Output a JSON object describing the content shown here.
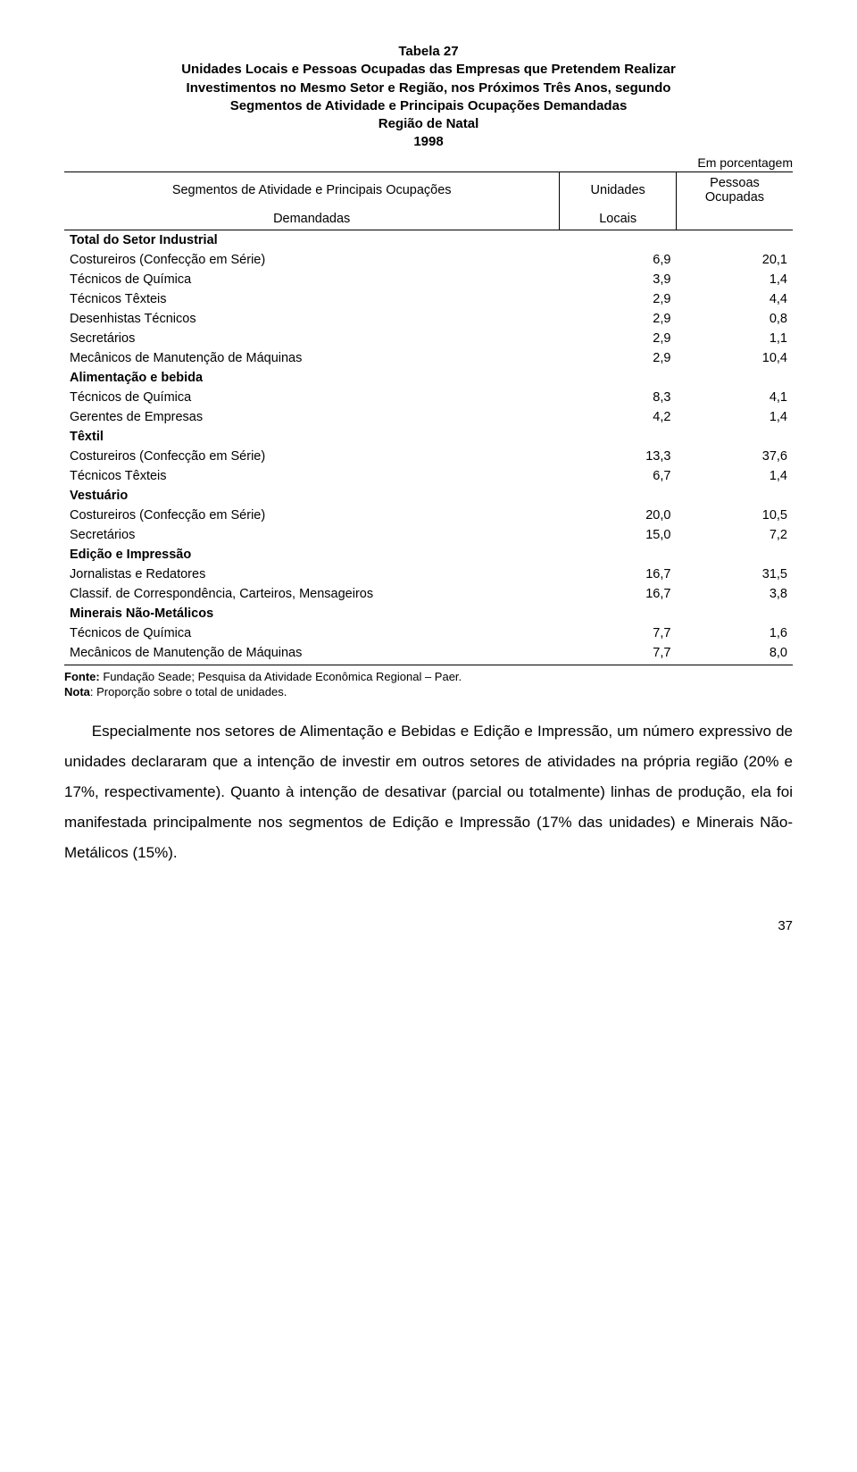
{
  "title": {
    "line1": "Tabela 27",
    "line2": "Unidades Locais e Pessoas Ocupadas das Empresas que Pretendem Realizar",
    "line3": "Investimentos no Mesmo Setor e Região, nos Próximos Três Anos, segundo",
    "line4": "Segmentos de Atividade e Principais Ocupações Demandadas",
    "line5": "Região de Natal",
    "line6": "1998"
  },
  "units_label": "Em porcentagem",
  "header": {
    "left_top": "Segmentos de Atividade e Principais Ocupações",
    "left_bottom": "Demandadas",
    "mid_top": "Unidades",
    "mid_bottom": "Locais",
    "right": "Pessoas Ocupadas"
  },
  "rows": [
    {
      "label": "Total do Setor Industrial",
      "v1": "",
      "v2": "",
      "bold": true
    },
    {
      "label": "Costureiros (Confecção em Série)",
      "v1": "6,9",
      "v2": "20,1"
    },
    {
      "label": "Técnicos de Química",
      "v1": "3,9",
      "v2": "1,4"
    },
    {
      "label": "Técnicos Têxteis",
      "v1": "2,9",
      "v2": "4,4"
    },
    {
      "label": "Desenhistas Técnicos",
      "v1": "2,9",
      "v2": "0,8"
    },
    {
      "label": "Secretários",
      "v1": "2,9",
      "v2": "1,1"
    },
    {
      "label": "Mecânicos de Manutenção de Máquinas",
      "v1": "2,9",
      "v2": "10,4"
    },
    {
      "label": "Alimentação e bebida",
      "v1": "",
      "v2": "",
      "bold": true
    },
    {
      "label": "Técnicos de Química",
      "v1": "8,3",
      "v2": "4,1"
    },
    {
      "label": "Gerentes de Empresas",
      "v1": "4,2",
      "v2": "1,4"
    },
    {
      "label": "Têxtil",
      "v1": "",
      "v2": "",
      "bold": true
    },
    {
      "label": "Costureiros (Confecção em Série)",
      "v1": "13,3",
      "v2": "37,6"
    },
    {
      "label": "Técnicos Têxteis",
      "v1": "6,7",
      "v2": "1,4"
    },
    {
      "label": "Vestuário",
      "v1": "",
      "v2": "",
      "bold": true
    },
    {
      "label": "Costureiros (Confecção em Série)",
      "v1": "20,0",
      "v2": "10,5"
    },
    {
      "label": "Secretários",
      "v1": "15,0",
      "v2": "7,2"
    },
    {
      "label": "Edição e Impressão",
      "v1": "",
      "v2": "",
      "bold": true
    },
    {
      "label": "Jornalistas e Redatores",
      "v1": "16,7",
      "v2": "31,5"
    },
    {
      "label": "Classif. de Correspondência, Carteiros, Mensageiros",
      "v1": "16,7",
      "v2": "3,8"
    },
    {
      "label": "Minerais Não-Metálicos",
      "v1": "",
      "v2": "",
      "bold": true
    },
    {
      "label": "Técnicos de Química",
      "v1": "7,7",
      "v2": "1,6"
    },
    {
      "label": "Mecânicos de Manutenção de Máquinas",
      "v1": "7,7",
      "v2": "8,0"
    }
  ],
  "notes": {
    "fonte_label": "Fonte:",
    "fonte_text": " Fundação Seade; Pesquisa da Atividade Econômica Regional – Paer.",
    "nota_label": "Nota",
    "nota_text": ": Proporção sobre o total de unidades."
  },
  "body_text": "Especialmente nos setores de Alimentação e Bebidas e Edição e Impressão, um número expressivo de unidades declararam que a intenção de investir em outros setores de atividades na própria região (20% e 17%, respectivamente). Quanto à intenção de desativar (parcial ou totalmente) linhas de produção, ela foi manifestada principalmente nos segmentos de Edição e Impressão (17% das unidades) e Minerais Não-Metálicos (15%).",
  "page_number": "37",
  "style": {
    "background_color": "#ffffff",
    "text_color": "#000000",
    "border_color": "#000000",
    "title_fontsize": 15,
    "table_fontsize": 14.5,
    "notes_fontsize": 13,
    "body_fontsize": 17,
    "body_line_height": 2.0
  }
}
